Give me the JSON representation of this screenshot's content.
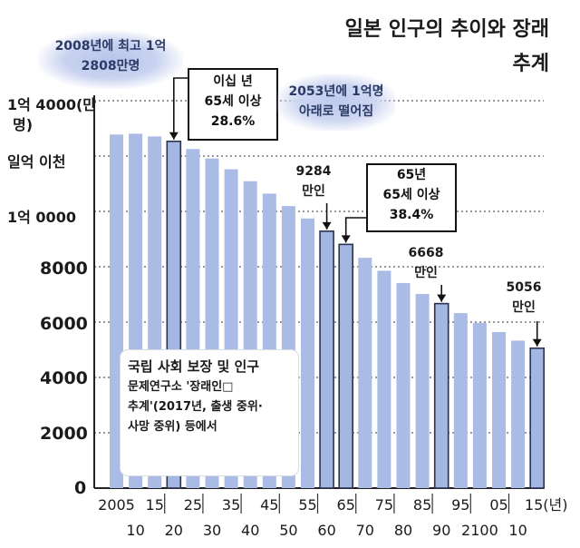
{
  "title_line1": "일본 인구의 추이와 장래",
  "title_line2": "추계",
  "y_labels": [
    "1억 4000(만",
    "명)",
    "일억 이천",
    "1억 0000",
    "8000",
    "6000",
    "4000",
    "2000",
    "0"
  ],
  "x_labels_row1": [
    "2005",
    "15",
    "25",
    "35",
    "45",
    "55",
    "65",
    "75",
    "85",
    "95",
    "05",
    "15(년)"
  ],
  "x_labels_row2": [
    "10",
    "20",
    "30",
    "40",
    "50",
    "60",
    "70",
    "80",
    "90",
    "2100",
    "10"
  ],
  "highlight_peak_line1": "2008년에 최고 1억",
  "highlight_peak_line2": "2808만명",
  "box_2020_line1": "이십 년",
  "box_2020_line2": "65세 이상",
  "box_2020_line3": "28.6%",
  "highlight_2053_line1": "2053년에 1억명",
  "highlight_2053_line2": "아래로 떨어짐",
  "label_2060_line1": "9284",
  "label_2060_line2": "만인",
  "box_2065_line1": "65년",
  "box_2065_line2": "65세 이상",
  "box_2065_line3": "38.4%",
  "label_2090_line1": "6668",
  "label_2090_line2": "만인",
  "label_2115_line1": "5056",
  "label_2115_line2": "만인",
  "source_line1": "국립 사회 보장 및 인구",
  "source_line2": "문제연구소 '장래인□",
  "source_line3": "추계'(2017년, 출생 중위·",
  "source_line4": "사망 중위) 등에서",
  "chart_data": {
    "type": "bar",
    "ylim": [
      0,
      14000
    ],
    "categories": [
      "2005",
      "2010",
      "2015",
      "2020",
      "2025",
      "2030",
      "2035",
      "2040",
      "2045",
      "2050",
      "2055",
      "2060",
      "2065",
      "2070",
      "2075",
      "2080",
      "2085",
      "2090",
      "2095",
      "2100",
      "2105",
      "2110",
      "2115"
    ],
    "values": [
      12777,
      12806,
      12709,
      12532,
      12254,
      11913,
      11522,
      11092,
      10642,
      10192,
      9744,
      9284,
      8808,
      8323,
      7856,
      7412,
      7014,
      6668,
      6324,
      5972,
      5639,
      5330,
      5056
    ],
    "highlighted_categories": [
      "2020",
      "2060",
      "2065",
      "2090",
      "2115"
    ],
    "colors": {
      "bar": "#aabbe6",
      "bar_highlight": "#a4b6e2",
      "bar_outline": "#2a3350"
    }
  }
}
